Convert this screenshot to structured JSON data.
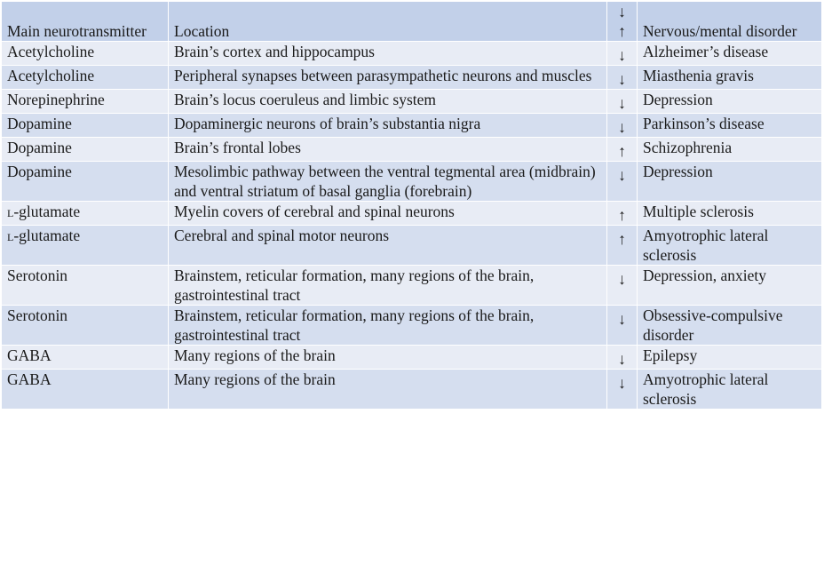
{
  "table": {
    "headers": {
      "neurotransmitter": "Main neurotransmitter",
      "location": "Location",
      "arrow_down": "↓",
      "arrow_up": "↑",
      "disorder": "Nervous/mental disorder"
    },
    "rows": [
      {
        "nt": "Acetylcholine",
        "loc": "Brain’s cortex and hippocampus",
        "dir": "↓",
        "dis": "Alzheimer’s disease"
      },
      {
        "nt": "Acetylcholine",
        "loc": "Peripheral synapses between parasympathetic neurons and muscles",
        "dir": "↓",
        "dis": "Miasthenia gravis"
      },
      {
        "nt": "Norepinephrine",
        "loc": "Brain’s locus coeruleus and limbic system",
        "dir": "↓",
        "dis": "Depression"
      },
      {
        "nt": "Dopamine",
        "loc": "Dopaminergic neurons of brain’s substantia nigra",
        "dir": "↓",
        "dis": "Parkinson’s disease"
      },
      {
        "nt": "Dopamine",
        "loc": "Brain’s frontal lobes",
        "dir": "↑",
        "dis": "Schizophrenia"
      },
      {
        "nt": "Dopamine",
        "loc": "Mesolimbic pathway between the ventral tegmental area (midbrain) and ventral striatum of basal ganglia (forebrain)",
        "dir": "↓",
        "dis": "Depression"
      },
      {
        "nt": "L-glutamate",
        "loc": "Myelin covers of cerebral and spinal neurons",
        "dir": "↑",
        "dis": "Multiple sclerosis"
      },
      {
        "nt": "L-glutamate",
        "loc": "Cerebral and spinal motor neurons",
        "dir": "↑",
        "dis": "Amyotrophic lateral sclerosis"
      },
      {
        "nt": "Serotonin",
        "loc": "Brainstem, reticular formation, many regions of the brain, gastrointestinal tract",
        "dir": "↓",
        "dis": "Depression, anxiety"
      },
      {
        "nt": "Serotonin",
        "loc": "Brainstem, reticular formation, many regions of the brain, gastrointestinal tract",
        "dir": "↓",
        "dis": "Obsessive-compulsive disorder"
      },
      {
        "nt": "GABA",
        "loc": "Many regions of the brain",
        "dir": "↓",
        "dis": "Epilepsy"
      },
      {
        "nt": "GABA",
        "loc": "Many regions of the brain",
        "dir": "↓",
        "dis": "Amyotrophic lateral sclerosis"
      }
    ]
  }
}
